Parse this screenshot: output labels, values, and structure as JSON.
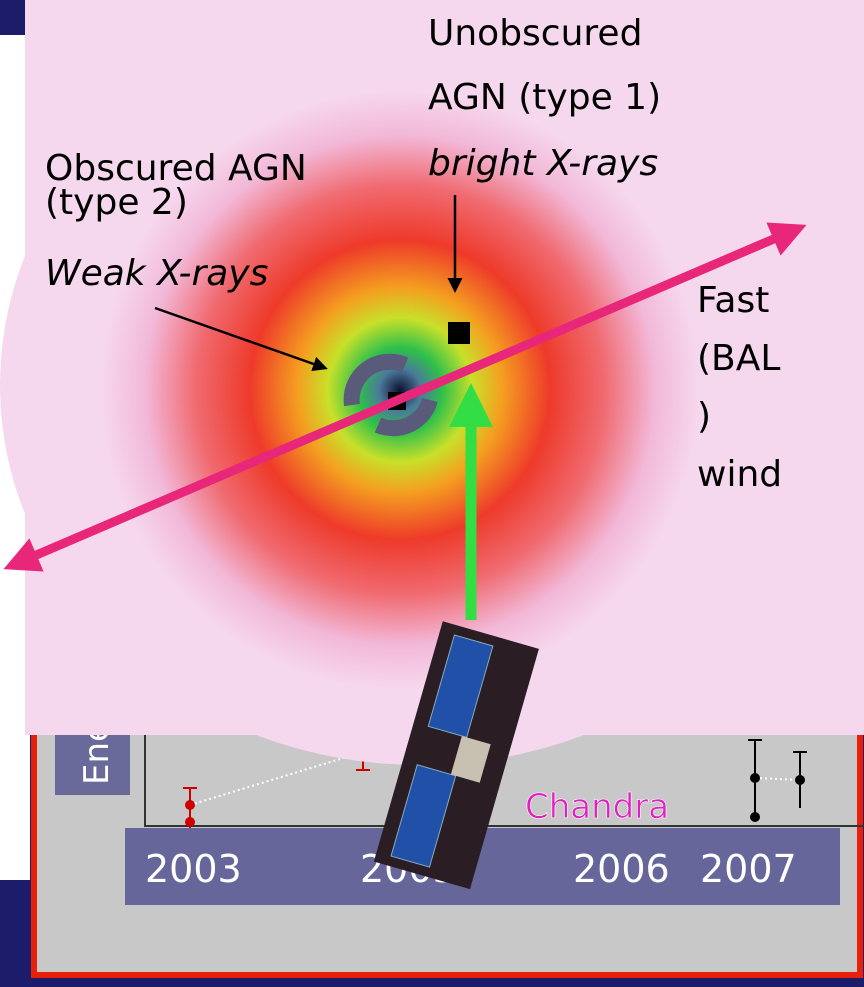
{
  "image_labels": {
    "unobscured": [
      "Unobscured",
      "AGN (type 1)"
    ],
    "unobscured_note": "bright X-rays",
    "obscured": [
      "Obscured AGN",
      "(type 2)"
    ],
    "obscured_note": "Weak X-rays",
    "wind": [
      "Fast",
      "(BAL",
      ")",
      "wind"
    ]
  },
  "plot": {
    "axis_label": "Ene",
    "satellite": "Chandra",
    "years": [
      "2003",
      "2005",
      "2006",
      "2007"
    ]
  }
}
